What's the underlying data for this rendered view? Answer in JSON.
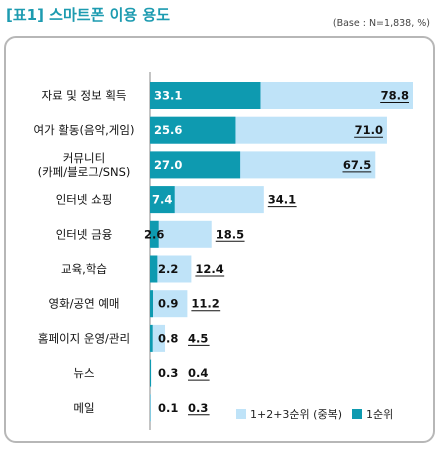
{
  "title": "[표1] 스마트폰 이용 용도",
  "base_note": "(Base : N=1,838, %)",
  "colors": {
    "light": "#bfe3f8",
    "dark": "#0e9ab0",
    "title": "#1d9bb0"
  },
  "chart_data": {
    "type": "bar",
    "orientation": "horizontal",
    "categories": [
      "자료 및 정보 획득",
      "여가 활동(음악,게임)",
      "커뮤니티|(카페/블로그/SNS)",
      "인터넷 쇼핑",
      "인터넷 금융",
      "교육,학습",
      "영화/공연 예매",
      "홈페이지 운영/관리",
      "뉴스",
      "메일"
    ],
    "series": [
      {
        "name": "1+2+3순위 (중복)",
        "values": [
          78.8,
          71.0,
          67.5,
          34.1,
          18.5,
          12.4,
          11.2,
          4.5,
          0.4,
          0.3
        ]
      },
      {
        "name": "1순위",
        "values": [
          33.1,
          25.6,
          27.0,
          7.4,
          2.6,
          2.2,
          0.9,
          0.8,
          0.3,
          0.1
        ]
      }
    ],
    "labels_total": [
      "78.8",
      "71.0",
      "67.5",
      "34.1",
      "18.5",
      "12.4",
      "11.2",
      "4.5",
      "0.4",
      "0.3"
    ],
    "labels_first": [
      "33.1",
      "25.6",
      "27.0",
      "7.4",
      "2.6",
      "2.2",
      "0.9",
      "0.8",
      "0.3",
      "0.1"
    ],
    "xlim": [
      0,
      80
    ],
    "legend_position": "bottom-right"
  }
}
